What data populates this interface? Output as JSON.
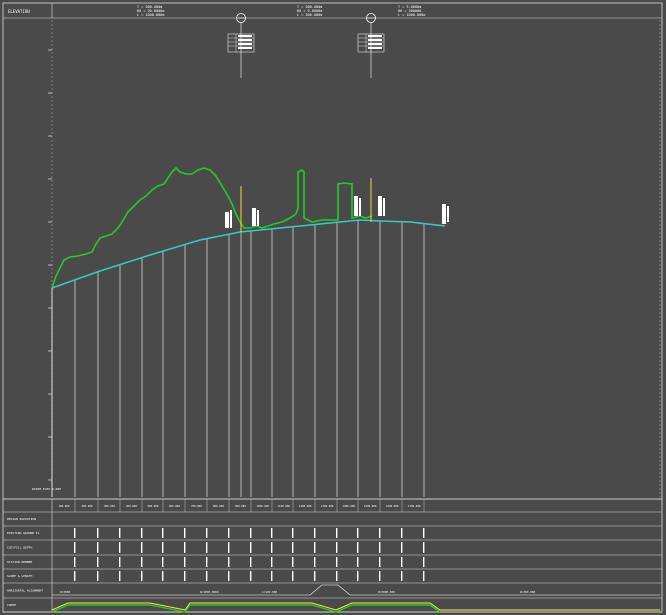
{
  "header": {
    "title": "ELEVATION",
    "curve_blocks": [
      {
        "line1": "T = 300.000m",
        "line2": "R0 = 30.0000m",
        "line3": "L = 1000.000m"
      },
      {
        "line1": "T = 300.000m",
        "line2": "R0 = 3.0000m",
        "line3": "L = 300.000m"
      },
      {
        "line1": "T = 3.0000m",
        "line2": "R0 = 300000",
        "line3": "L = 1000.000m"
      }
    ]
  },
  "profile": {
    "datum_label": "DATUM ELEV 0.000",
    "colors": {
      "background": "#4a4a4a",
      "ground_line": "#22cc22",
      "design_line": "#33cccc",
      "station_lines": "#ffffff",
      "marker_yellow": "#ffee33"
    }
  },
  "table": {
    "row_labels": [
      "DESIGN ELEVATION",
      "EXISTING GROUND EL",
      "CUT/FILL DEPTH",
      "STATION NUMBER",
      "SLOPE & LENGTH",
      "HORIZONTAL ALIGNMENT",
      "CURVE"
    ],
    "station_values": [
      "100.000",
      "200.000",
      "300.000",
      "400.000",
      "500.000",
      "600.000",
      "700.000",
      "800.000",
      "900.000",
      "1000.000",
      "1100.000",
      "1200.000",
      "1300.000",
      "1400.000",
      "1500.000",
      "1600.000",
      "1700.000"
    ],
    "curve_row_texts": [
      "R=3000",
      "R=1000.0000",
      "L=100.000",
      "R=3000.000",
      "R=300.000"
    ]
  }
}
